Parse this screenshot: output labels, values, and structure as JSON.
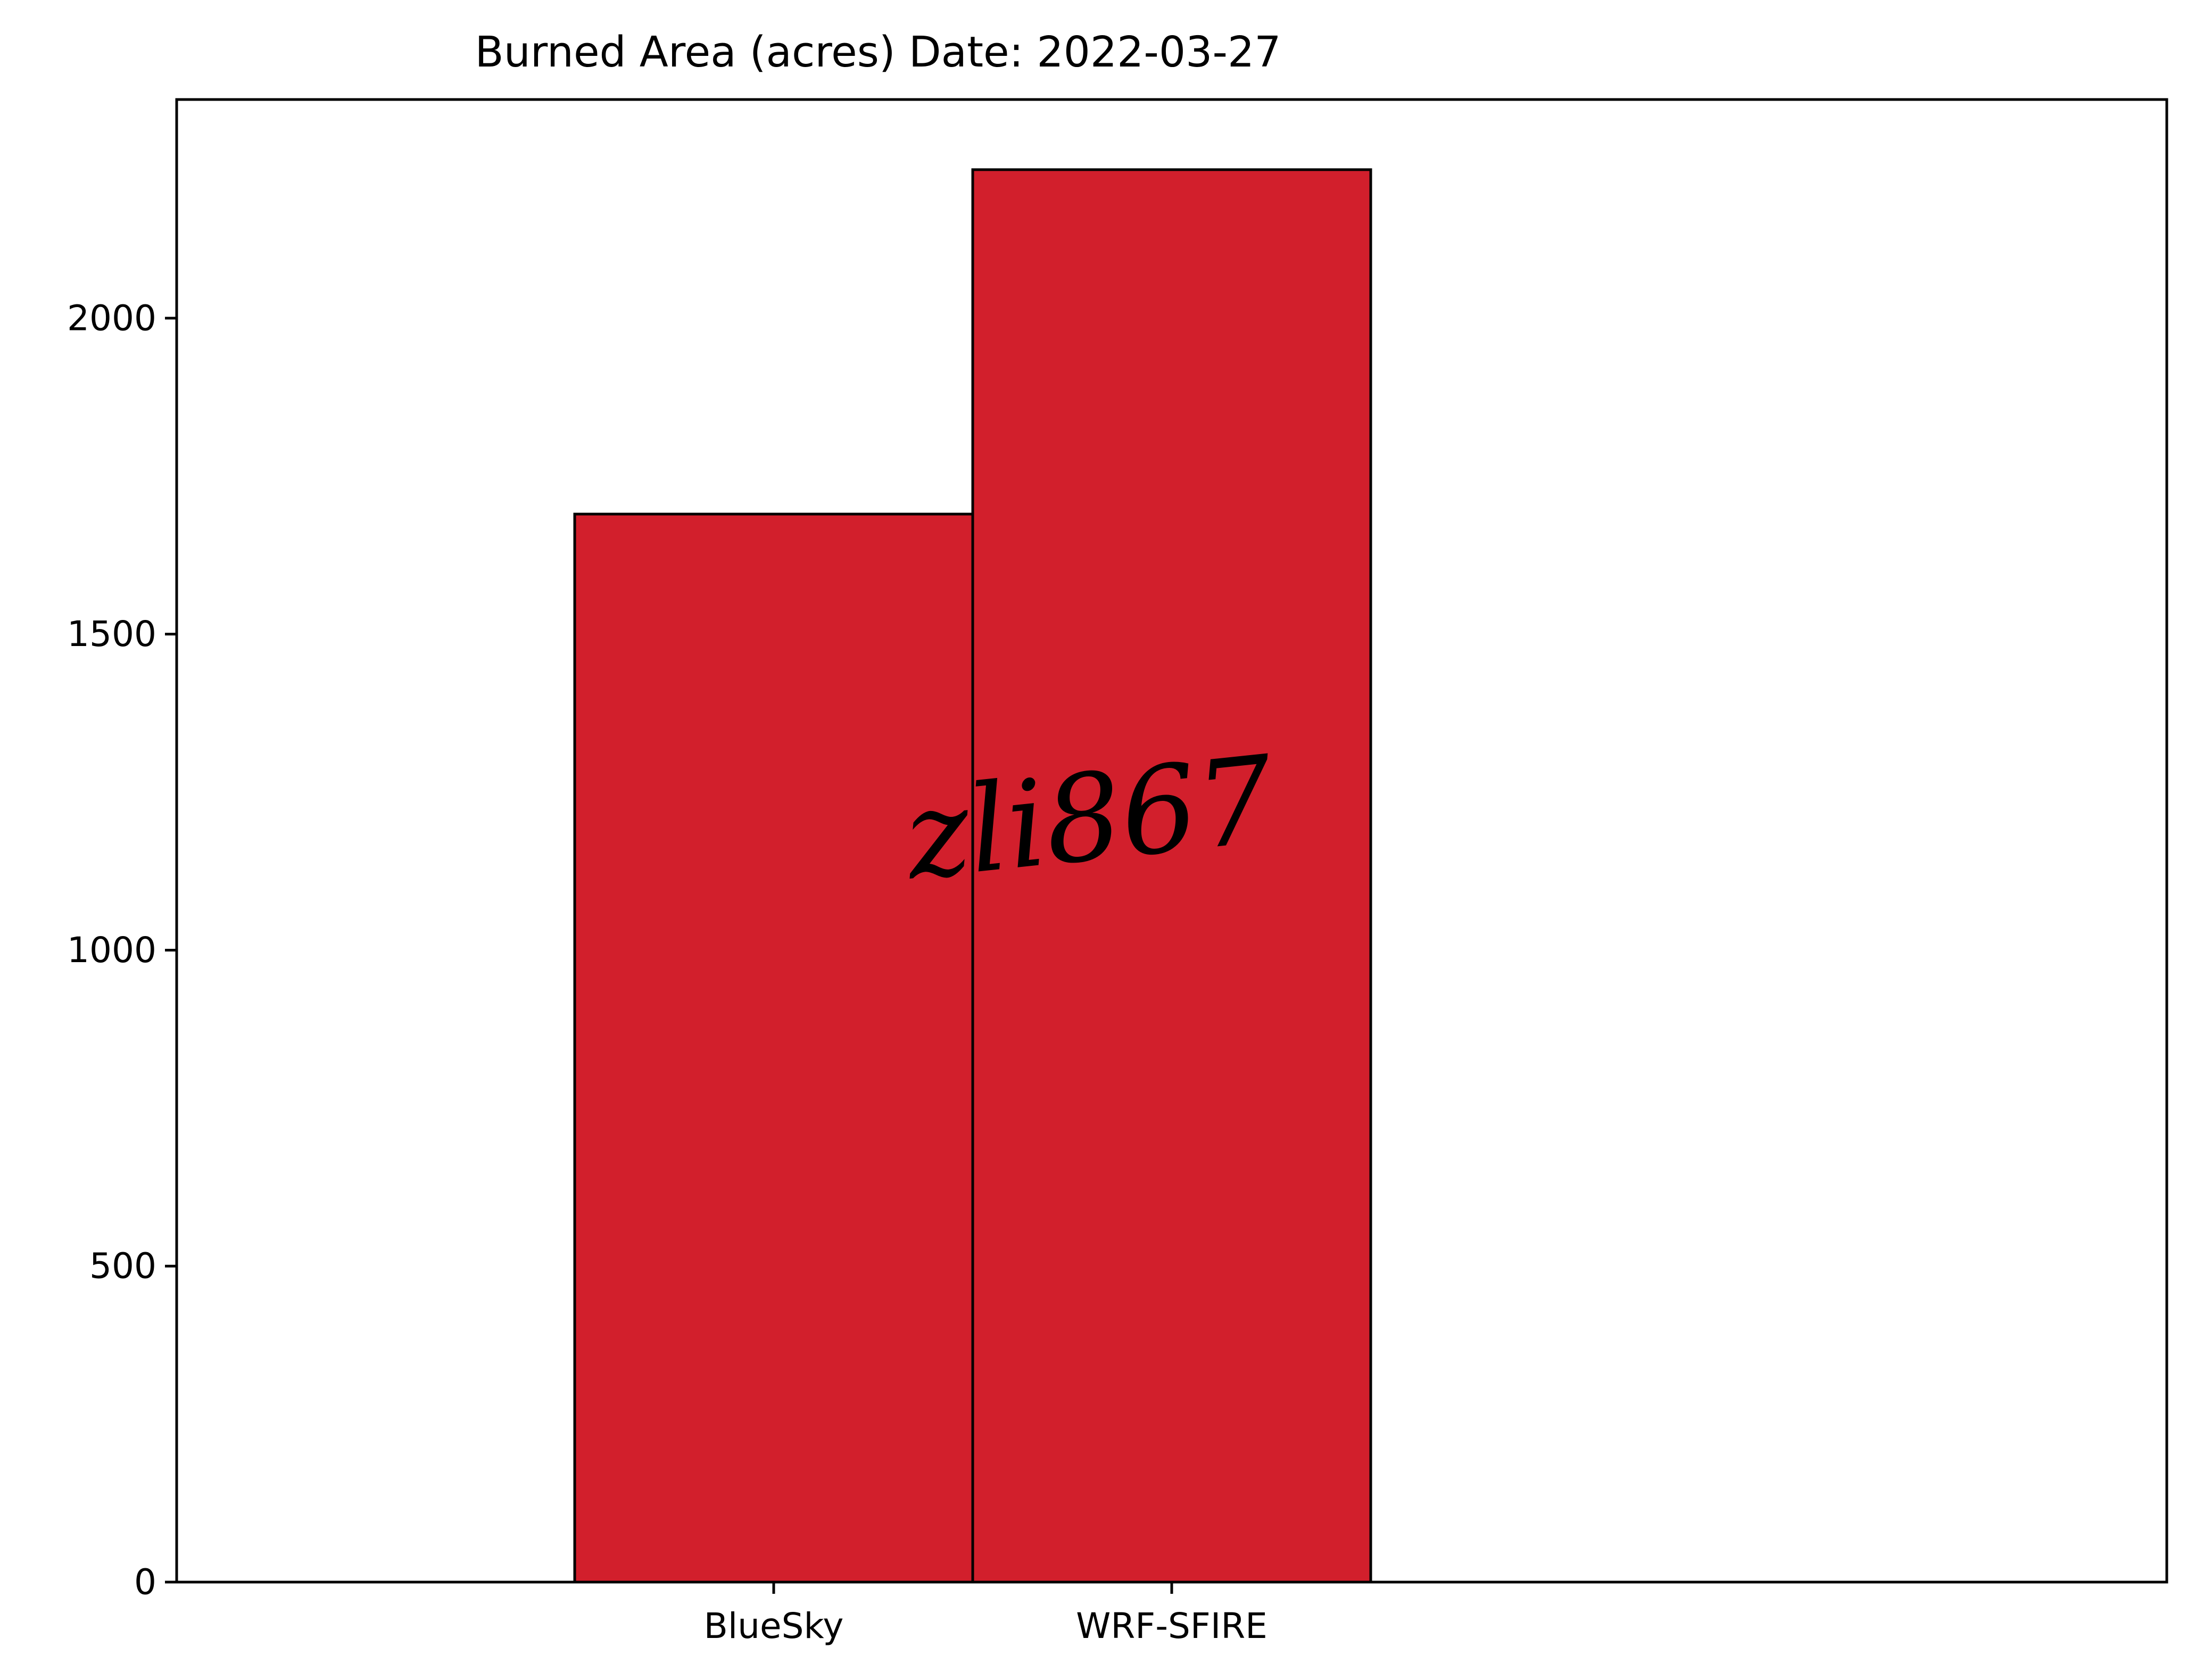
{
  "chart_data": {
    "type": "bar",
    "title": "Burned Area (acres) Date: 2022-03-27",
    "categories": [
      "BlueSky",
      "WRF-SFIRE"
    ],
    "values": [
      1690,
      2235
    ],
    "xlabel": "",
    "ylabel": "",
    "ylim": [
      0,
      2346
    ],
    "yticks": [
      0,
      500,
      1000,
      1500,
      2000
    ],
    "ytick_labels": [
      "0",
      "500",
      "1000",
      "1500",
      "2000"
    ],
    "grid": false,
    "legend": "none",
    "bar_color": "#d21f2c",
    "edge_color": "#000000"
  },
  "watermark": {
    "text": "zli867"
  }
}
